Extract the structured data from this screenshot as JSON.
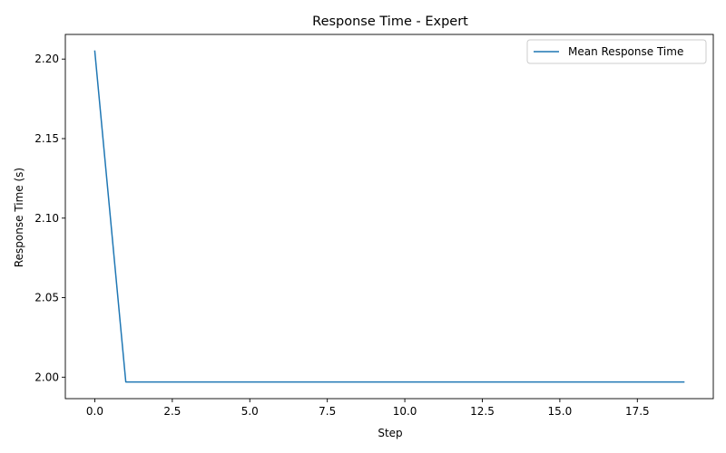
{
  "chart_data": {
    "type": "line",
    "title": "Response Time - Expert",
    "xlabel": "Step",
    "ylabel": "Response Time (s)",
    "xlim": [
      -0.95,
      19.95
    ],
    "ylim": [
      1.9865,
      2.2155
    ],
    "xticks": [
      0.0,
      2.5,
      5.0,
      7.5,
      10.0,
      12.5,
      15.0,
      17.5
    ],
    "xtick_labels": [
      "0.0",
      "2.5",
      "5.0",
      "7.5",
      "10.0",
      "12.5",
      "15.0",
      "17.5"
    ],
    "yticks": [
      2.0,
      2.05,
      2.1,
      2.15,
      2.2
    ],
    "ytick_labels": [
      "2.00",
      "2.05",
      "2.10",
      "2.15",
      "2.20"
    ],
    "grid": false,
    "legend": "top-right",
    "series": [
      {
        "name": "Mean Response Time",
        "color": "#1f77b4",
        "x": [
          0,
          1,
          2,
          3,
          4,
          5,
          6,
          7,
          8,
          9,
          10,
          11,
          12,
          13,
          14,
          15,
          16,
          17,
          18,
          19
        ],
        "values": [
          2.205,
          1.997,
          1.997,
          1.997,
          1.997,
          1.997,
          1.997,
          1.997,
          1.997,
          1.997,
          1.997,
          1.997,
          1.997,
          1.997,
          1.997,
          1.997,
          1.997,
          1.997,
          1.997,
          1.997
        ]
      }
    ]
  }
}
